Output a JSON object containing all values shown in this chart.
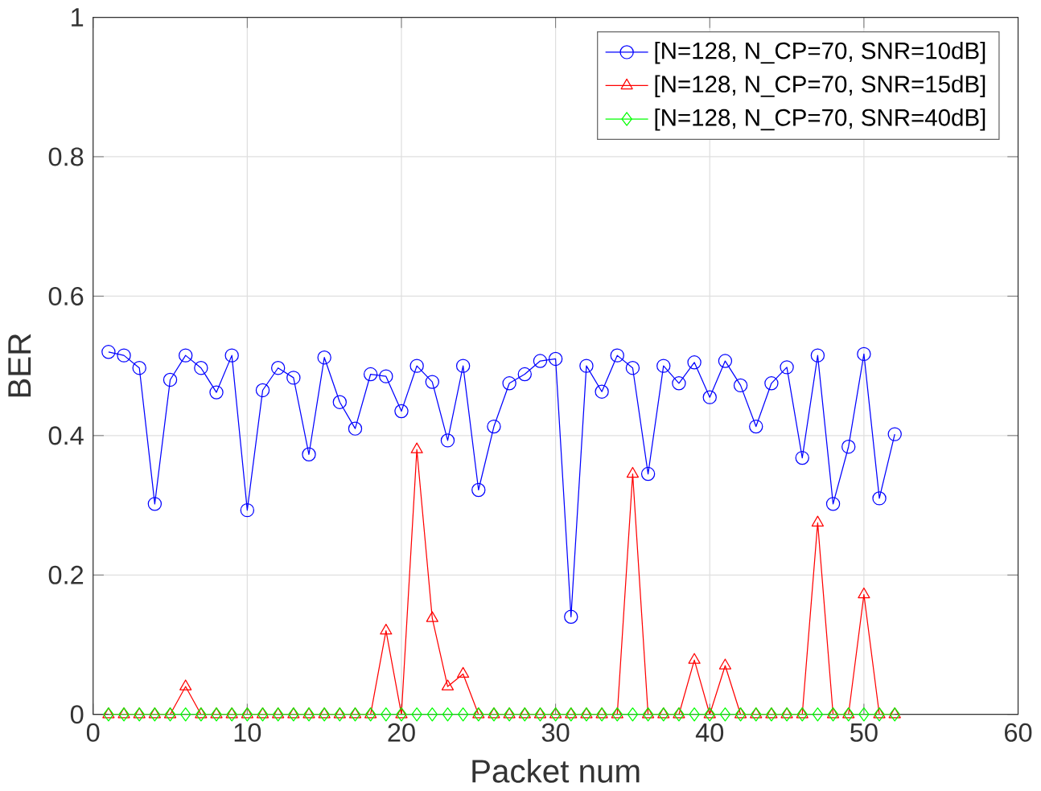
{
  "chart_data": {
    "type": "line",
    "xlabel": "Packet num",
    "ylabel": "BER",
    "xlim": [
      0,
      60
    ],
    "ylim": [
      0,
      1
    ],
    "xticks": [
      0,
      10,
      20,
      30,
      40,
      50,
      60
    ],
    "yticks": [
      0,
      0.2,
      0.4,
      0.6,
      0.8,
      1
    ],
    "grid": true,
    "legend": "top right",
    "x": [
      1,
      2,
      3,
      4,
      5,
      6,
      7,
      8,
      9,
      10,
      11,
      12,
      13,
      14,
      15,
      16,
      17,
      18,
      19,
      20,
      21,
      22,
      23,
      24,
      25,
      26,
      27,
      28,
      29,
      30,
      31,
      32,
      33,
      34,
      35,
      36,
      37,
      38,
      39,
      40,
      41,
      42,
      43,
      44,
      45,
      46,
      47,
      48,
      49,
      50,
      51,
      52
    ],
    "series": [
      {
        "name": "[N=128, N_CP=70, SNR=10dB]",
        "color": "#0000ff",
        "marker": "circle",
        "values": [
          0.52,
          0.515,
          0.497,
          0.302,
          0.48,
          0.515,
          0.497,
          0.462,
          0.515,
          0.293,
          0.465,
          0.497,
          0.483,
          0.373,
          0.512,
          0.448,
          0.41,
          0.488,
          0.485,
          0.435,
          0.5,
          0.477,
          0.393,
          0.5,
          0.322,
          0.413,
          0.475,
          0.488,
          0.507,
          0.51,
          0.14,
          0.5,
          0.463,
          0.515,
          0.497,
          0.345,
          0.5,
          0.475,
          0.505,
          0.455,
          0.507,
          0.472,
          0.413,
          0.475,
          0.498,
          0.368,
          0.515,
          0.302,
          0.384,
          0.517,
          0.31,
          0.402
        ]
      },
      {
        "name": "[N=128, N_CP=70, SNR=15dB]",
        "color": "#ff0000",
        "marker": "triangle",
        "values": [
          0,
          0,
          0,
          0,
          0,
          0.04,
          0,
          0,
          0,
          0,
          0,
          0,
          0,
          0,
          0,
          0,
          0,
          0,
          0.12,
          0,
          0.38,
          0.138,
          0.04,
          0.058,
          0,
          0,
          0,
          0,
          0,
          0,
          0,
          0,
          0,
          0,
          0.345,
          0,
          0,
          0,
          0.078,
          0,
          0.07,
          0,
          0,
          0,
          0,
          0,
          0.275,
          0,
          0,
          0.172,
          0,
          0
        ]
      },
      {
        "name": "[N=128, N_CP=70, SNR=40dB]",
        "color": "#00ff00",
        "marker": "diamond",
        "values": [
          0,
          0,
          0,
          0,
          0,
          0,
          0,
          0,
          0,
          0,
          0,
          0,
          0,
          0,
          0,
          0,
          0,
          0,
          0,
          0,
          0,
          0,
          0,
          0,
          0,
          0,
          0,
          0,
          0,
          0,
          0,
          0,
          0,
          0,
          0,
          0,
          0,
          0,
          0,
          0,
          0,
          0,
          0,
          0,
          0,
          0,
          0,
          0,
          0,
          0,
          0,
          0
        ]
      }
    ]
  }
}
